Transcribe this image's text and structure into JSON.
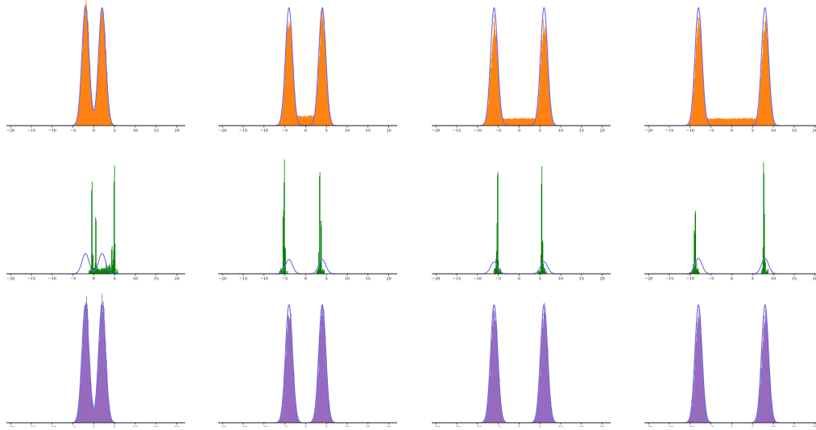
{
  "colors": {
    "density_line": "#6a6ae6",
    "orange_fill": "#ff7f0e",
    "green_fill": "#008000",
    "purple_fill": "#9467bd",
    "axis": "#000000"
  },
  "chart_data": [
    {
      "type": "area",
      "row": 0,
      "col": 0,
      "fill": "orange",
      "peaks": [
        -2,
        2
      ],
      "width": 0.85,
      "hist_peak": 1.02,
      "bridge": 0.0,
      "xlim": [
        -21,
        22
      ],
      "xticks": [
        -20,
        -15,
        -10,
        -5,
        0,
        5,
        10,
        15,
        20
      ]
    },
    {
      "type": "area",
      "row": 0,
      "col": 1,
      "fill": "orange",
      "peaks": [
        -4,
        4
      ],
      "width": 0.85,
      "hist_peak": 0.93,
      "bridge": 0.08,
      "xlim": [
        -21,
        22
      ],
      "xticks": [
        -20,
        -15,
        -10,
        -5,
        0,
        5,
        10,
        15,
        20
      ]
    },
    {
      "type": "area",
      "row": 0,
      "col": 2,
      "fill": "orange",
      "peaks": [
        -6,
        6
      ],
      "width": 0.85,
      "hist_peak": 0.87,
      "bridge": 0.06,
      "xlim": [
        -21,
        22
      ],
      "xticks": [
        -20,
        -15,
        -10,
        -5,
        0,
        5,
        10,
        15,
        20
      ]
    },
    {
      "type": "area",
      "row": 0,
      "col": 3,
      "fill": "orange",
      "peaks": [
        -8,
        8
      ],
      "width": 0.85,
      "hist_peak": 0.87,
      "bridge": 0.06,
      "xlim": [
        -21,
        22
      ],
      "xticks": [
        -20,
        -15,
        -10,
        -5,
        0,
        5,
        10,
        15,
        20
      ]
    },
    {
      "type": "area",
      "row": 1,
      "col": 0,
      "fill": "green",
      "peaks": [
        -2,
        2
      ],
      "width": 0.85,
      "density_peak": 0.17,
      "spikes": [
        [
          -0.5,
          0.9
        ],
        [
          0.4,
          0.5
        ],
        [
          4.8,
          1.0
        ],
        [
          4.2,
          0.25
        ]
      ],
      "xlim": [
        -21,
        22
      ],
      "xticks": [
        -20,
        -15,
        -10,
        -5,
        0,
        5,
        10,
        15,
        20
      ]
    },
    {
      "type": "area",
      "row": 1,
      "col": 1,
      "fill": "green",
      "peaks": [
        -4,
        4
      ],
      "width": 0.85,
      "density_peak": 0.12,
      "spikes": [
        [
          -5.2,
          1.0
        ],
        [
          -5.5,
          0.55
        ],
        [
          3.3,
          0.96
        ],
        [
          3.6,
          0.45
        ]
      ],
      "xlim": [
        -21,
        22
      ],
      "xticks": [
        -20,
        -15,
        -10,
        -5,
        0,
        5,
        10,
        15,
        20
      ]
    },
    {
      "type": "area",
      "row": 1,
      "col": 2,
      "fill": "green",
      "peaks": [
        -6,
        6
      ],
      "width": 0.85,
      "density_peak": 0.1,
      "spikes": [
        [
          -5.2,
          1.0
        ],
        [
          -5.4,
          0.55
        ],
        [
          5.3,
          0.98
        ],
        [
          5.6,
          0.35
        ]
      ],
      "xlim": [
        -21,
        22
      ],
      "xticks": [
        -20,
        -15,
        -10,
        -5,
        0,
        5,
        10,
        15,
        20
      ]
    },
    {
      "type": "area",
      "row": 1,
      "col": 3,
      "fill": "green",
      "peaks": [
        -8,
        8
      ],
      "width": 0.85,
      "density_peak": 0.13,
      "spikes": [
        [
          -8.8,
          0.67
        ],
        [
          -9.1,
          0.38
        ],
        [
          7.6,
          1.0
        ],
        [
          7.8,
          0.55
        ]
      ],
      "xlim": [
        -21,
        22
      ],
      "xticks": [
        -20,
        -15,
        -10,
        -5,
        0,
        5,
        10,
        15,
        20
      ]
    },
    {
      "type": "area",
      "row": 2,
      "col": 0,
      "fill": "purple",
      "peaks": [
        -2,
        2
      ],
      "width": 0.85,
      "hist_peak": 1.02,
      "bridge": 0.0,
      "xlim": [
        -21,
        22
      ],
      "xticks": [
        -20,
        -15,
        -10,
        -5,
        0,
        5,
        10,
        15,
        20
      ]
    },
    {
      "type": "area",
      "row": 2,
      "col": 1,
      "fill": "purple",
      "peaks": [
        -4,
        4
      ],
      "width": 0.85,
      "hist_peak": 0.95,
      "bridge": 0.0,
      "xlim": [
        -21,
        22
      ],
      "xticks": [
        -20,
        -15,
        -10,
        -5,
        0,
        5,
        10,
        15,
        20
      ]
    },
    {
      "type": "area",
      "row": 2,
      "col": 2,
      "fill": "purple",
      "peaks": [
        -6,
        6
      ],
      "width": 0.85,
      "hist_peak": 0.95,
      "bridge": 0.0,
      "xlim": [
        -21,
        22
      ],
      "xticks": [
        -20,
        -15,
        -10,
        -5,
        0,
        5,
        10,
        15,
        20
      ]
    },
    {
      "type": "area",
      "row": 2,
      "col": 3,
      "fill": "purple",
      "peaks": [
        -8,
        8
      ],
      "width": 0.85,
      "hist_peak": 0.9,
      "bridge": 0.0,
      "xlim": [
        -21,
        22
      ],
      "xticks": [
        -20,
        -15,
        -10,
        -5,
        0,
        5,
        10,
        15,
        20
      ]
    }
  ]
}
